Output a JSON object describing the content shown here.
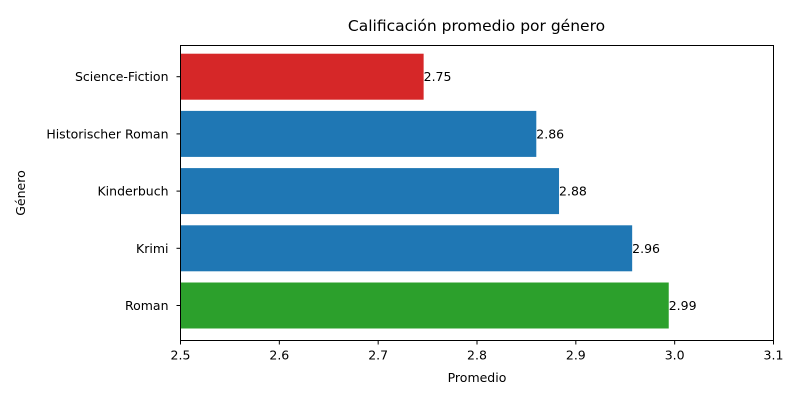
{
  "chart_data": {
    "type": "bar",
    "orientation": "horizontal",
    "title": "Calificación promedio por género",
    "xlabel": "Promedio",
    "ylabel": "Género",
    "xlim": [
      2.5,
      3.1
    ],
    "xticks": [
      "2.5",
      "2.6",
      "2.7",
      "2.8",
      "2.9",
      "3.0",
      "3.1"
    ],
    "grid": false,
    "categories": [
      "Roman",
      "Krimi",
      "Kinderbuch",
      "Historischer Roman",
      "Science-Fiction"
    ],
    "values": [
      2.994,
      2.957,
      2.883,
      2.86,
      2.746
    ],
    "labels": [
      "2.99",
      "2.96",
      "2.88",
      "2.86",
      "2.75"
    ],
    "colors": [
      "#2ca02c",
      "#1f77b4",
      "#1f77b4",
      "#1f77b4",
      "#d62728"
    ]
  }
}
